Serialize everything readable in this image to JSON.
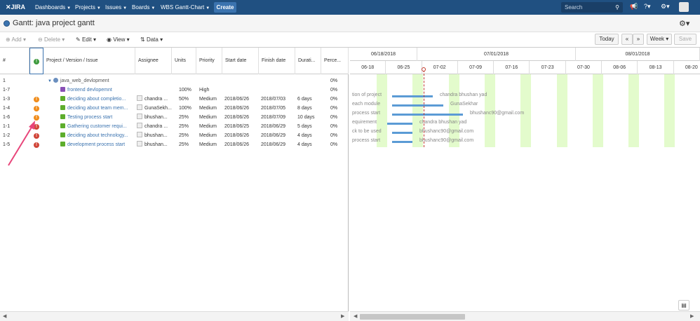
{
  "topbar": {
    "logo": "JIRA",
    "nav": [
      "Dashboards",
      "Projects",
      "Issues",
      "Boards",
      "WBS Gantt-Chart"
    ],
    "create": "Create",
    "search_placeholder": "Search"
  },
  "title": "Gantt: java project gantt",
  "toolbar": {
    "add": "Add",
    "delete": "Delete",
    "edit": "Edit",
    "view": "View",
    "data": "Data",
    "today": "Today",
    "prev": "«",
    "next": "»",
    "scale": "Week",
    "save": "Save"
  },
  "columns": [
    "#",
    "!",
    "Project / Version / Issue",
    "Assignee",
    "Units",
    "Priority",
    "Start date",
    "Finish date",
    "Durati...",
    "Perce..."
  ],
  "rows": [
    {
      "num": "1",
      "warn": "",
      "name": "java_web_devlopment",
      "type": "version",
      "assignee": "",
      "units": "",
      "priority": "",
      "start": "",
      "finish": "",
      "duration": "",
      "percent": "0%"
    },
    {
      "num": "1-7",
      "warn": "",
      "name": "frontend devlopemnt",
      "type": "purple",
      "assignee": "",
      "units": "100%",
      "priority": "High",
      "start": "",
      "finish": "",
      "duration": "",
      "percent": "0%"
    },
    {
      "num": "1-3",
      "warn": "orange",
      "name": "deciding about completio...",
      "type": "issue",
      "assignee": "chandra ...",
      "units": "50%",
      "priority": "Medium",
      "start": "2018/06/26",
      "finish": "2018/07/03",
      "duration": "6 days",
      "percent": "0%"
    },
    {
      "num": "1-4",
      "warn": "orange",
      "name": "deciding about team mem...",
      "type": "issue",
      "assignee": "GunaSekh...",
      "units": "100%",
      "priority": "Medium",
      "start": "2018/06/26",
      "finish": "2018/07/05",
      "duration": "8 days",
      "percent": "0%"
    },
    {
      "num": "1-6",
      "warn": "orange",
      "name": "Testing process start",
      "type": "issue",
      "assignee": "bhushan...",
      "units": "25%",
      "priority": "Medium",
      "start": "2018/06/26",
      "finish": "2018/07/09",
      "duration": "10 days",
      "percent": "0%"
    },
    {
      "num": "1-1",
      "warn": "red",
      "name": "Gathering customer requi...",
      "type": "issue",
      "assignee": "chandra ...",
      "units": "25%",
      "priority": "Medium",
      "start": "2018/06/25",
      "finish": "2018/06/29",
      "duration": "5 days",
      "percent": "0%"
    },
    {
      "num": "1-2",
      "warn": "red",
      "name": "deciding about technology...",
      "type": "issue",
      "assignee": "bhushan...",
      "units": "25%",
      "priority": "Medium",
      "start": "2018/06/26",
      "finish": "2018/06/29",
      "duration": "4 days",
      "percent": "0%"
    },
    {
      "num": "1-5",
      "warn": "red",
      "name": "development process start",
      "type": "issue",
      "assignee": "bhushan...",
      "units": "25%",
      "priority": "Medium",
      "start": "2018/06/26",
      "finish": "2018/06/29",
      "duration": "4 days",
      "percent": "0%"
    }
  ],
  "gantt": {
    "months": [
      "06/18/2018",
      "07/01/2018",
      "08/01/2018"
    ],
    "weeks": [
      "06-18",
      "06-25",
      "07-02",
      "07-09",
      "07-16",
      "07-23",
      "07-30",
      "08-06",
      "08-13",
      "08-20"
    ],
    "labels": [
      {
        "left": "tion of project",
        "right": "chandra bhushan yad"
      },
      {
        "left": "each module",
        "right": "GunaSekhar"
      },
      {
        "left": "process start",
        "right": "bhushanc90@gmail.com"
      },
      {
        "left": "equirement",
        "right": "chandra bhushan yad"
      },
      {
        "left": "ck to be used",
        "right": "bhushanc90@gmail.com"
      },
      {
        "left": "process start",
        "right": "bhushanc90@gmail.com"
      }
    ]
  },
  "colors": {
    "topbar": "#205081",
    "bar": "#5b9bd5",
    "weekend": "#e3fbcc",
    "link": "#3b73af"
  }
}
